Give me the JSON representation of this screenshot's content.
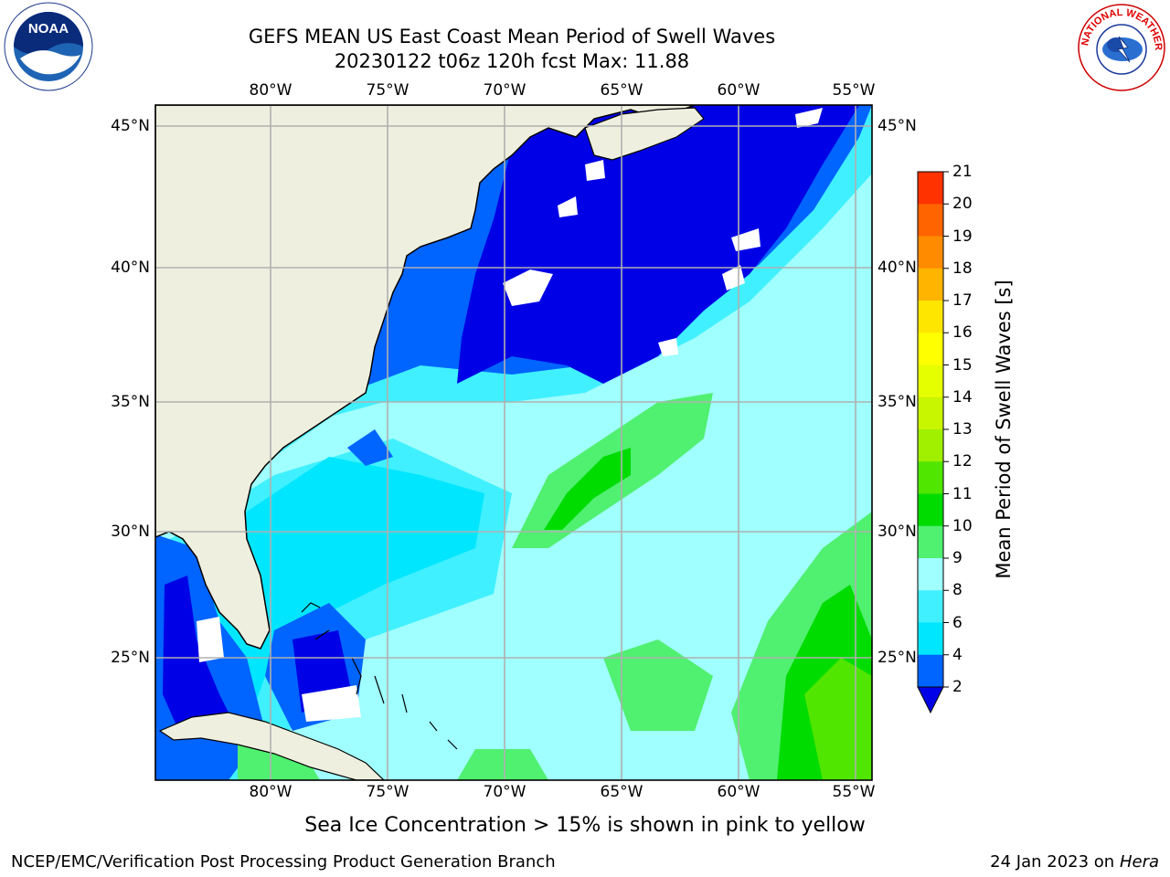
{
  "header": {
    "title_line1": "GEFS MEAN US East Coast Mean Period of Swell Waves",
    "title_line2": "20230122 t06z 120h fcst   Max: 11.88"
  },
  "map": {
    "lon_labels": [
      "80°W",
      "75°W",
      "70°W",
      "65°W",
      "60°W",
      "55°W"
    ],
    "lat_labels": [
      "45°N",
      "40°N",
      "35°N",
      "30°N",
      "25°N"
    ],
    "land_color": "#efefdf",
    "grid_color": "#b0b0b0"
  },
  "colorbar": {
    "title": "Mean Period of Swell Waves [s]",
    "ticks": [
      "21",
      "20",
      "19",
      "18",
      "17",
      "16",
      "15",
      "14",
      "13",
      "12",
      "11",
      "10",
      "9",
      "8",
      "6",
      "4",
      "2"
    ],
    "colors": [
      "#0000e6",
      "#0064ff",
      "#00e6ff",
      "#40f0ff",
      "#a0ffff",
      "#50f070",
      "#00dc00",
      "#50e600",
      "#a0f000",
      "#c8f500",
      "#e6ff00",
      "#ffff00",
      "#ffe600",
      "#ffb400",
      "#ff8c00",
      "#ff6400",
      "#ff3200",
      "#ff0000"
    ]
  },
  "notes": {
    "ice": "Sea Ice Concentration > 15% is shown in pink to yellow"
  },
  "footer": {
    "left": "NCEP/EMC/Verification Post Processing Product Generation Branch",
    "date": "24 Jan 2023 on ",
    "host": "Hera"
  },
  "logos": {
    "noaa_text": "NOAA",
    "nws_text": "NATIONAL WEATHER SERVICE"
  }
}
